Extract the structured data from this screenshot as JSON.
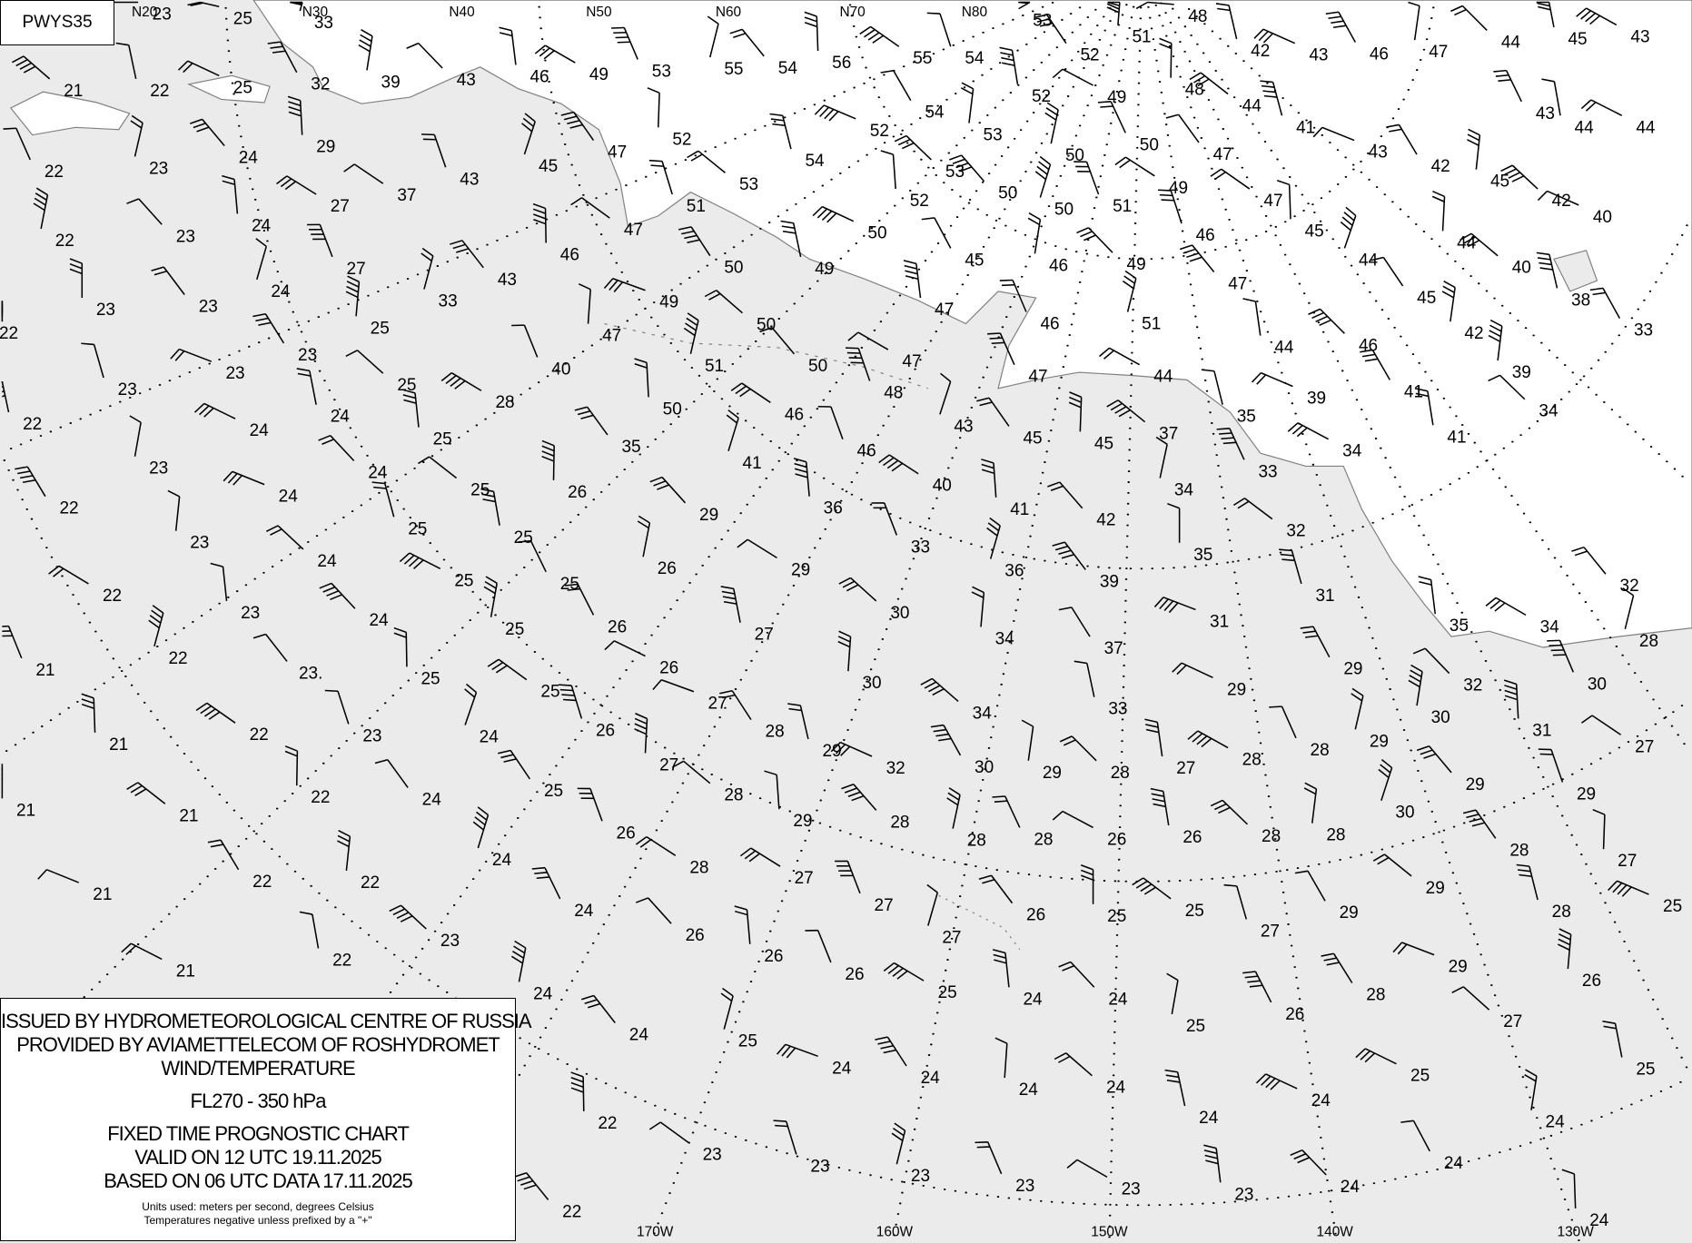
{
  "chart_id": "PWYS35",
  "legend": {
    "line1": "ISSUED BY HYDROMETEOROLOGICAL CENTRE OF RUSSIA",
    "line2": "PROVIDED BY AVIAMETTELECOM OF ROSHYDROMET",
    "line3": "WIND/TEMPERATURE",
    "level": "FL270 - 350 hPa",
    "chart_type": "FIXED TIME PROGNOSTIC CHART",
    "valid": "VALID ON 12 UTC 19.11.2025",
    "based": "BASED ON 06 UTC DATA 17.11.2025",
    "units": "Units used: meters per second, degrees Celsius",
    "note": "Temperatures negative unless prefixed by a \"+\""
  },
  "colors": {
    "ocean": "#ebebeb",
    "land": "#ffffff",
    "coast": "#808080",
    "ink": "#000000"
  },
  "top_labels": [
    "N20",
    "N30",
    "N40",
    "N50",
    "N60",
    "N70",
    "N80"
  ],
  "bottom_labels": [
    "170W",
    "160W",
    "150W",
    "140W",
    "130W"
  ],
  "temperatures": [
    "23",
    "25",
    "33",
    "21",
    "22",
    "25",
    "32",
    "39",
    "43",
    "46",
    "49",
    "53",
    "55",
    "54",
    "56",
    "55",
    "54",
    "53",
    "52",
    "51",
    "48",
    "42",
    "43",
    "46",
    "47",
    "44",
    "45",
    "43",
    "22",
    "23",
    "24",
    "29",
    "37",
    "43",
    "45",
    "47",
    "52",
    "53",
    "54",
    "52",
    "54",
    "53",
    "53",
    "52",
    "49",
    "50",
    "50",
    "50",
    "52",
    "49",
    "51",
    "50",
    "47",
    "48",
    "44",
    "41",
    "43",
    "42",
    "45",
    "42",
    "44",
    "44",
    "43",
    "22",
    "23",
    "24",
    "27",
    "27",
    "24",
    "23",
    "23",
    "22",
    "23",
    "23",
    "23",
    "25",
    "25",
    "24",
    "24",
    "22",
    "23",
    "24",
    "25",
    "28",
    "40",
    "33",
    "43",
    "46",
    "47",
    "51",
    "49",
    "50",
    "47",
    "50",
    "49",
    "50",
    "45",
    "46",
    "49",
    "47",
    "47",
    "46",
    "51",
    "47",
    "45",
    "47",
    "46",
    "44",
    "45",
    "44",
    "40",
    "38",
    "40",
    "33",
    "42",
    "46",
    "44",
    "44",
    "47",
    "51",
    "50",
    "50",
    "46",
    "48",
    "43",
    "45",
    "45",
    "37",
    "35",
    "39",
    "41",
    "39",
    "34",
    "41",
    "34",
    "33",
    "34",
    "42",
    "41",
    "40",
    "46",
    "41",
    "35",
    "26",
    "25",
    "25",
    "24",
    "22",
    "23",
    "24",
    "25",
    "25",
    "25",
    "26",
    "29",
    "36",
    "29",
    "33",
    "36",
    "39",
    "35",
    "32",
    "31",
    "31",
    "37",
    "34",
    "30",
    "27",
    "26",
    "26",
    "25",
    "24",
    "23",
    "22",
    "21",
    "22",
    "23.",
    "25",
    "25",
    "26",
    "27",
    "28",
    "30",
    "34",
    "33",
    "29",
    "29",
    "30",
    "32",
    "35",
    "34",
    "30",
    "28",
    "32",
    "21",
    "22",
    "23",
    "24",
    "25",
    "27",
    "28",
    "29",
    "32",
    "30",
    "29",
    "28",
    "27",
    "28",
    "28",
    "29",
    "29",
    "31",
    "27",
    "29",
    "30",
    "28",
    "27",
    "29",
    "28",
    "25",
    "29",
    "28",
    "28",
    "26",
    "26",
    "28",
    "28",
    "28",
    "29",
    "28",
    "26",
    "24",
    "24",
    "22",
    "21",
    "21",
    "21",
    "22",
    "22",
    "23",
    "22",
    "21",
    "24",
    "24",
    "26",
    "26",
    "27",
    "27",
    "27",
    "26",
    "25",
    "25",
    "27",
    "29",
    "28",
    "26",
    "27",
    "25",
    "25",
    "26",
    "25",
    "24",
    "24",
    "25",
    "26",
    "25",
    "24",
    "22",
    "23",
    "23",
    "24",
    "24",
    "24",
    "24",
    "24",
    "24",
    "24",
    "24",
    "24",
    "23",
    "23",
    "23",
    "23",
    "22",
    "24"
  ]
}
